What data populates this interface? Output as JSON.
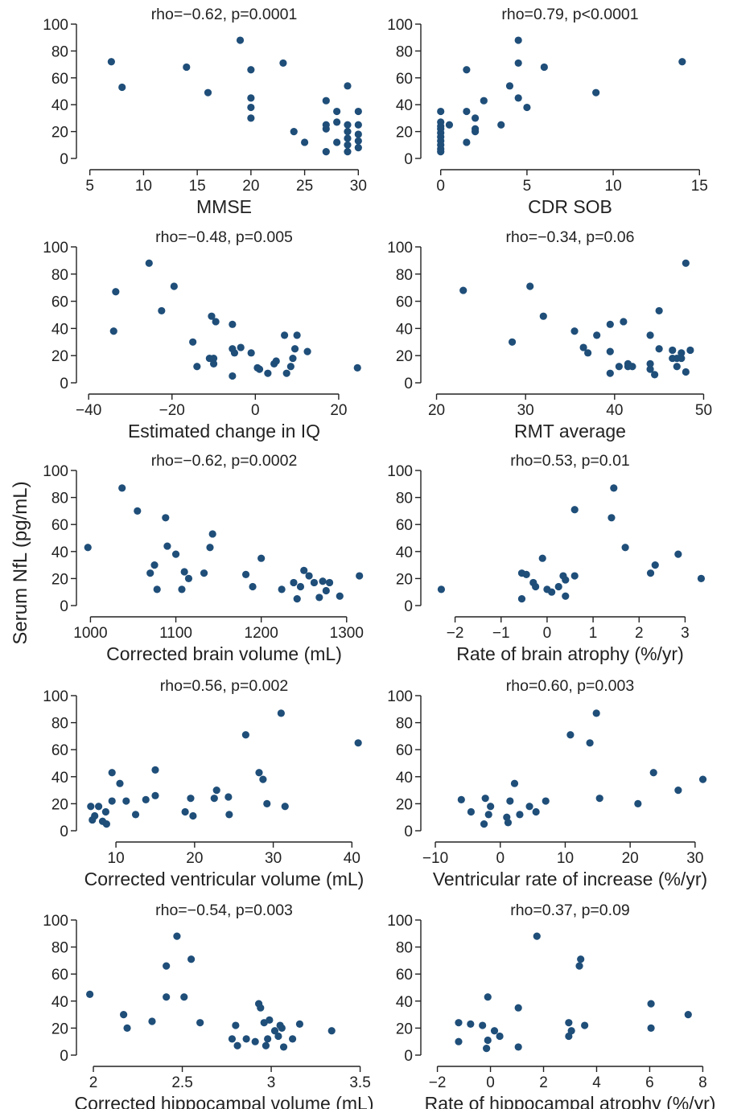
{
  "figure": {
    "shared_ylabel": "Serum NfL (pg/mL)"
  },
  "chart_data": [
    {
      "type": "scatter",
      "xlabel": "MMSE",
      "annotation": "rho=−0.62, p=0.0001",
      "xlim": [
        4.5,
        30.5
      ],
      "xticks": [
        5,
        10,
        15,
        20,
        25,
        30
      ],
      "ylim": [
        0,
        100
      ],
      "yticks": [
        0,
        20,
        40,
        60,
        80,
        100
      ],
      "points": [
        [
          7,
          72
        ],
        [
          8,
          53
        ],
        [
          14,
          68
        ],
        [
          16,
          49
        ],
        [
          19,
          88
        ],
        [
          20,
          66
        ],
        [
          20,
          45
        ],
        [
          20,
          38
        ],
        [
          20,
          30
        ],
        [
          23,
          71
        ],
        [
          24,
          20
        ],
        [
          25,
          12
        ],
        [
          27,
          43
        ],
        [
          27,
          25
        ],
        [
          27,
          22
        ],
        [
          27,
          5
        ],
        [
          28,
          35
        ],
        [
          28,
          27
        ],
        [
          28,
          12
        ],
        [
          29,
          54
        ],
        [
          29,
          25
        ],
        [
          29,
          20
        ],
        [
          29,
          15
        ],
        [
          29,
          10
        ],
        [
          29,
          5
        ],
        [
          30,
          35
        ],
        [
          30,
          25
        ],
        [
          30,
          18
        ],
        [
          30,
          13
        ],
        [
          30,
          8
        ]
      ]
    },
    {
      "type": "scatter",
      "xlabel": "CDR SOB",
      "annotation": "rho=0.79, p<0.0001",
      "xlim": [
        -0.5,
        15.5
      ],
      "xticks": [
        0,
        5,
        10,
        15
      ],
      "ylim": [
        0,
        100
      ],
      "yticks": [
        0,
        20,
        40,
        60,
        80,
        100
      ],
      "points": [
        [
          0,
          35
        ],
        [
          0,
          27
        ],
        [
          0,
          24
        ],
        [
          0,
          22
        ],
        [
          0,
          19
        ],
        [
          0,
          16
        ],
        [
          0,
          13
        ],
        [
          0,
          10
        ],
        [
          0,
          7
        ],
        [
          0,
          5
        ],
        [
          0.5,
          25
        ],
        [
          1.5,
          66
        ],
        [
          1.5,
          35
        ],
        [
          1.5,
          12
        ],
        [
          2,
          30
        ],
        [
          2,
          22
        ],
        [
          2,
          20
        ],
        [
          2.5,
          43
        ],
        [
          3.5,
          25
        ],
        [
          4,
          54
        ],
        [
          4.5,
          88
        ],
        [
          4.5,
          71
        ],
        [
          4.5,
          45
        ],
        [
          5,
          38
        ],
        [
          6,
          68
        ],
        [
          9,
          49
        ],
        [
          14,
          72
        ]
      ]
    },
    {
      "type": "scatter",
      "xlabel": "Estimated change in IQ",
      "annotation": "rho=−0.48, p=0.005",
      "xlim": [
        -41,
        26
      ],
      "xticks": [
        -40,
        -20,
        0,
        20
      ],
      "ylim": [
        0,
        100
      ],
      "yticks": [
        0,
        20,
        40,
        60,
        80,
        100
      ],
      "points": [
        [
          -33.5,
          67
        ],
        [
          -34,
          38
        ],
        [
          -25.5,
          88
        ],
        [
          -22.5,
          53
        ],
        [
          -19.5,
          71
        ],
        [
          -15,
          30
        ],
        [
          -14,
          12
        ],
        [
          -11,
          18
        ],
        [
          -10.5,
          49
        ],
        [
          -10,
          18
        ],
        [
          -10,
          14
        ],
        [
          -9.5,
          45
        ],
        [
          -5.5,
          43
        ],
        [
          -5.5,
          25
        ],
        [
          -5.5,
          5
        ],
        [
          -5,
          22
        ],
        [
          -3.5,
          26
        ],
        [
          -1,
          22
        ],
        [
          0.5,
          11
        ],
        [
          1,
          10
        ],
        [
          3,
          7
        ],
        [
          4.5,
          14
        ],
        [
          5,
          16
        ],
        [
          7,
          35
        ],
        [
          7.5,
          7
        ],
        [
          8.5,
          12
        ],
        [
          9,
          18
        ],
        [
          9.5,
          25
        ],
        [
          10,
          35
        ],
        [
          12.5,
          23
        ],
        [
          24.5,
          11
        ]
      ]
    },
    {
      "type": "scatter",
      "xlabel": "RMT average",
      "annotation": "rho=−0.34, p=0.06",
      "xlim": [
        19.5,
        50.5
      ],
      "xticks": [
        20,
        30,
        40,
        50
      ],
      "ylim": [
        0,
        100
      ],
      "yticks": [
        0,
        20,
        40,
        60,
        80,
        100
      ],
      "points": [
        [
          23,
          68
        ],
        [
          28.5,
          30
        ],
        [
          30.5,
          71
        ],
        [
          32,
          49
        ],
        [
          35.5,
          38
        ],
        [
          36.5,
          26
        ],
        [
          37,
          22
        ],
        [
          38,
          35
        ],
        [
          39.5,
          43
        ],
        [
          39.5,
          23
        ],
        [
          39.5,
          7
        ],
        [
          40.5,
          12
        ],
        [
          41,
          45
        ],
        [
          41.5,
          14
        ],
        [
          41.5,
          12
        ],
        [
          42,
          12
        ],
        [
          44,
          35
        ],
        [
          44,
          14
        ],
        [
          44,
          10
        ],
        [
          44.5,
          6
        ],
        [
          45,
          53
        ],
        [
          45,
          25
        ],
        [
          46.5,
          24
        ],
        [
          46.5,
          18
        ],
        [
          47,
          18
        ],
        [
          47,
          12
        ],
        [
          47.5,
          22
        ],
        [
          47.5,
          18
        ],
        [
          48,
          88
        ],
        [
          48,
          8
        ],
        [
          48.5,
          24
        ]
      ]
    },
    {
      "type": "scatter",
      "xlabel": "Corrected brain volume (mL)",
      "annotation": "rho=−0.62, p=0.0002",
      "xlim": [
        993,
        1320
      ],
      "xticks": [
        1000,
        1100,
        1200,
        1300
      ],
      "ylim": [
        0,
        100
      ],
      "yticks": [
        0,
        20,
        40,
        60,
        80,
        100
      ],
      "points": [
        [
          997,
          43
        ],
        [
          1037,
          87
        ],
        [
          1055,
          70
        ],
        [
          1070,
          24
        ],
        [
          1075,
          30
        ],
        [
          1078,
          12
        ],
        [
          1088,
          65
        ],
        [
          1090,
          44
        ],
        [
          1100,
          38
        ],
        [
          1107,
          12
        ],
        [
          1110,
          25
        ],
        [
          1115,
          20
        ],
        [
          1133,
          24
        ],
        [
          1140,
          43
        ],
        [
          1143,
          53
        ],
        [
          1182,
          23
        ],
        [
          1190,
          14
        ],
        [
          1200,
          35
        ],
        [
          1224,
          12
        ],
        [
          1238,
          17
        ],
        [
          1242,
          5
        ],
        [
          1246,
          14
        ],
        [
          1250,
          26
        ],
        [
          1256,
          22
        ],
        [
          1262,
          17
        ],
        [
          1268,
          6
        ],
        [
          1272,
          18
        ],
        [
          1276,
          11
        ],
        [
          1280,
          17
        ],
        [
          1292,
          7
        ],
        [
          1315,
          22
        ]
      ]
    },
    {
      "type": "scatter",
      "xlabel": "Rate of brain atrophy (%/yr)",
      "annotation": "rho=0.53, p=0.01",
      "xlim": [
        -2.5,
        3.5
      ],
      "xticks": [
        -2,
        -1,
        0,
        1,
        2,
        3
      ],
      "ylim": [
        0,
        100
      ],
      "yticks": [
        0,
        20,
        40,
        60,
        80,
        100
      ],
      "points": [
        [
          -2.3,
          12
        ],
        [
          -0.55,
          24
        ],
        [
          -0.55,
          5
        ],
        [
          -0.45,
          23
        ],
        [
          -0.3,
          17
        ],
        [
          -0.25,
          14
        ],
        [
          -0.1,
          35
        ],
        [
          0,
          12
        ],
        [
          0.1,
          10
        ],
        [
          0.25,
          14
        ],
        [
          0.35,
          22
        ],
        [
          0.4,
          19
        ],
        [
          0.4,
          7
        ],
        [
          0.6,
          22
        ],
        [
          0.6,
          71
        ],
        [
          1.45,
          87
        ],
        [
          1.4,
          65
        ],
        [
          1.7,
          43
        ],
        [
          2.25,
          24
        ],
        [
          2.35,
          30
        ],
        [
          2.85,
          38
        ],
        [
          3.35,
          20
        ]
      ]
    },
    {
      "type": "scatter",
      "xlabel": "Corrected ventricular volume (mL)",
      "annotation": "rho=0.56, p=0.002",
      "xlim": [
        6,
        41.5
      ],
      "xticks": [
        10,
        20,
        30,
        40
      ],
      "ylim": [
        0,
        100
      ],
      "yticks": [
        0,
        20,
        40,
        60,
        80,
        100
      ],
      "points": [
        [
          6.8,
          18
        ],
        [
          7,
          8
        ],
        [
          7.3,
          11
        ],
        [
          7.8,
          18
        ],
        [
          8.3,
          7
        ],
        [
          8.7,
          14
        ],
        [
          8.8,
          5
        ],
        [
          9.5,
          22
        ],
        [
          9.5,
          43
        ],
        [
          10.5,
          35
        ],
        [
          11.3,
          22
        ],
        [
          12.5,
          12
        ],
        [
          13.8,
          23
        ],
        [
          15,
          26
        ],
        [
          15,
          45
        ],
        [
          18.8,
          14
        ],
        [
          19.5,
          24
        ],
        [
          19.8,
          11
        ],
        [
          22.5,
          24
        ],
        [
          22.8,
          30
        ],
        [
          24.3,
          25
        ],
        [
          24.4,
          12
        ],
        [
          26.5,
          71
        ],
        [
          28.2,
          43
        ],
        [
          28.7,
          38
        ],
        [
          29.2,
          20
        ],
        [
          31,
          87
        ],
        [
          31.5,
          18
        ],
        [
          40.8,
          65
        ]
      ]
    },
    {
      "type": "scatter",
      "xlabel": "Ventricular rate of increase (%/yr)",
      "annotation": "rho=0.60, p=0.003",
      "xlim": [
        -10.5,
        32
      ],
      "xticks": [
        -10,
        0,
        10,
        20,
        30
      ],
      "ylim": [
        0,
        100
      ],
      "yticks": [
        0,
        20,
        40,
        60,
        80,
        100
      ],
      "points": [
        [
          -6,
          23
        ],
        [
          -4.5,
          14
        ],
        [
          -2.5,
          5
        ],
        [
          -2.3,
          24
        ],
        [
          -1.8,
          12
        ],
        [
          -1.5,
          18
        ],
        [
          1.5,
          22
        ],
        [
          2.2,
          35
        ],
        [
          1,
          10
        ],
        [
          1.2,
          6
        ],
        [
          3,
          12
        ],
        [
          4.5,
          18
        ],
        [
          5.5,
          14
        ],
        [
          7,
          22
        ],
        [
          10.8,
          71
        ],
        [
          13.8,
          65
        ],
        [
          14.8,
          87
        ],
        [
          15.3,
          24
        ],
        [
          21.2,
          20
        ],
        [
          23.6,
          43
        ],
        [
          27.4,
          30
        ],
        [
          31.2,
          38
        ]
      ]
    },
    {
      "type": "scatter",
      "xlabel": "Corrected hippocampal volume (mL)",
      "annotation": "rho=−0.54, p=0.003",
      "xlim": [
        1.95,
        3.52
      ],
      "xticks": [
        2,
        2.5,
        3,
        3.5
      ],
      "ylim": [
        0,
        100
      ],
      "yticks": [
        0,
        20,
        40,
        60,
        80,
        100
      ],
      "points": [
        [
          1.98,
          45
        ],
        [
          2.17,
          30
        ],
        [
          2.19,
          20
        ],
        [
          2.33,
          25
        ],
        [
          2.41,
          66
        ],
        [
          2.41,
          43
        ],
        [
          2.47,
          88
        ],
        [
          2.51,
          43
        ],
        [
          2.55,
          71
        ],
        [
          2.6,
          24
        ],
        [
          2.78,
          12
        ],
        [
          2.8,
          22
        ],
        [
          2.81,
          7
        ],
        [
          2.86,
          12
        ],
        [
          2.91,
          10
        ],
        [
          2.93,
          38
        ],
        [
          2.94,
          35
        ],
        [
          2.96,
          24
        ],
        [
          2.97,
          7
        ],
        [
          2.98,
          12
        ],
        [
          2.99,
          26
        ],
        [
          3.02,
          18
        ],
        [
          3.04,
          14
        ],
        [
          3.05,
          22
        ],
        [
          3.06,
          20
        ],
        [
          3.07,
          6
        ],
        [
          3.12,
          12
        ],
        [
          3.16,
          23
        ],
        [
          3.34,
          18
        ]
      ]
    },
    {
      "type": "scatter",
      "xlabel": "Rate of hippocampal atrophy (%/yr)",
      "annotation": "rho=0.37, p=0.09",
      "xlim": [
        -2.2,
        8.2
      ],
      "xticks": [
        -2,
        0,
        2,
        4,
        6,
        8
      ],
      "ylim": [
        0,
        100
      ],
      "yticks": [
        0,
        20,
        40,
        60,
        80,
        100
      ],
      "points": [
        [
          -1.2,
          24
        ],
        [
          -1.2,
          10
        ],
        [
          -0.75,
          23
        ],
        [
          -0.3,
          22
        ],
        [
          -0.15,
          5
        ],
        [
          -0.1,
          43
        ],
        [
          -0.1,
          11
        ],
        [
          0.15,
          18
        ],
        [
          0.35,
          14
        ],
        [
          1.05,
          35
        ],
        [
          1.05,
          6
        ],
        [
          1.75,
          88
        ],
        [
          2.95,
          24
        ],
        [
          2.95,
          14
        ],
        [
          3.05,
          18
        ],
        [
          3.35,
          66
        ],
        [
          3.4,
          71
        ],
        [
          3.55,
          22
        ],
        [
          6.05,
          38
        ],
        [
          6.05,
          20
        ],
        [
          7.45,
          30
        ]
      ]
    }
  ]
}
